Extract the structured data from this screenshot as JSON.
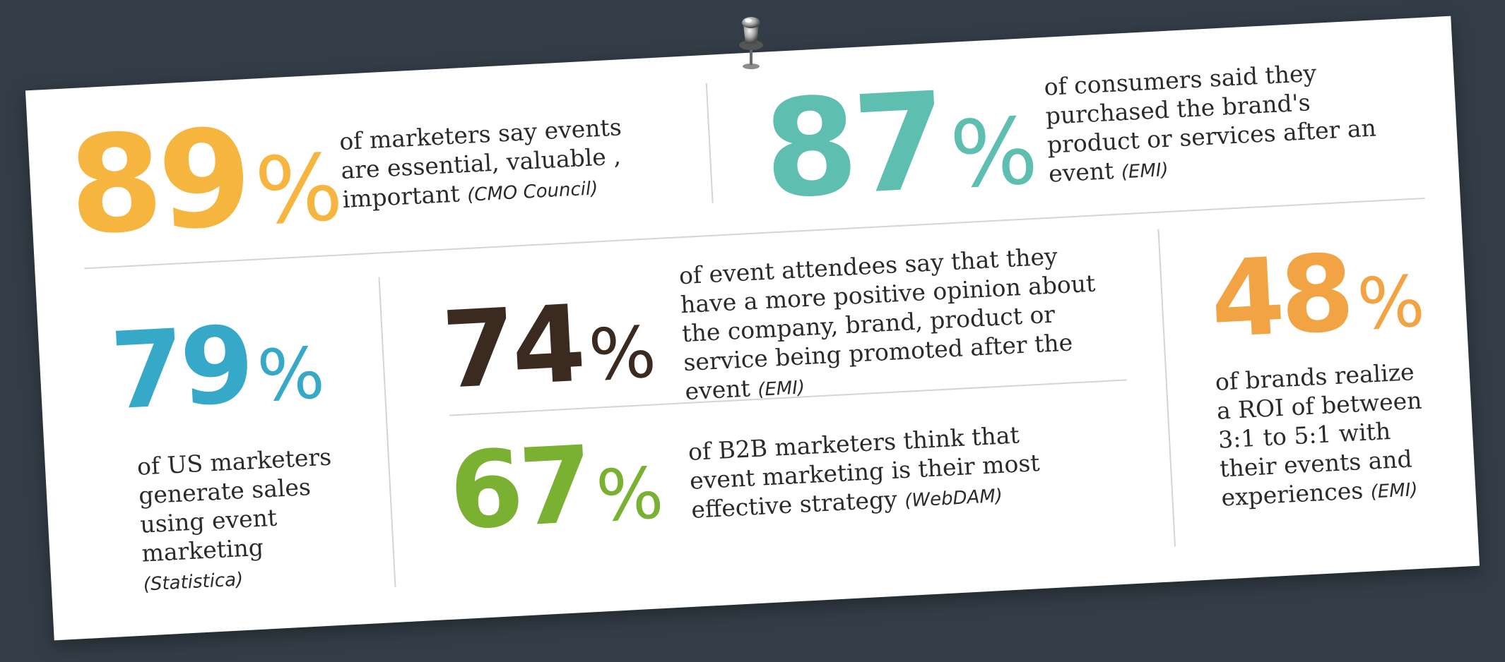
{
  "stats": [
    {
      "id": "s89",
      "value": "89",
      "unit": "%",
      "description": "of marketers say events are essential, valuable , important",
      "source": "(CMO Council)",
      "color": "#f6b53e"
    },
    {
      "id": "s87",
      "value": "87",
      "unit": "%",
      "description": "of consumers said they purchased the brand's product or services after an event",
      "source": "(EMI)",
      "color": "#5ebfb1"
    },
    {
      "id": "s79",
      "value": "79",
      "unit": "%",
      "description": "of US marketers generate sales using event marketing",
      "source": "(Statistica)",
      "color": "#37a9c8"
    },
    {
      "id": "s74",
      "value": "74",
      "unit": "%",
      "description": "of event attendees say that they have a more positive opinion about the company, brand, product or service being promoted after the event",
      "source": "(EMI)",
      "color": "#3b2a20"
    },
    {
      "id": "s67",
      "value": "67",
      "unit": "%",
      "description": "of B2B marketers think that event marketing is their most effective strategy",
      "source": "(WebDAM)",
      "color": "#7ab133"
    },
    {
      "id": "s48",
      "value": "48",
      "unit": "%",
      "description": "of brands realize a ROI of between 3:1 to 5:1 with their events and experiences",
      "source": "(EMI)",
      "color": "#f2a444"
    }
  ]
}
